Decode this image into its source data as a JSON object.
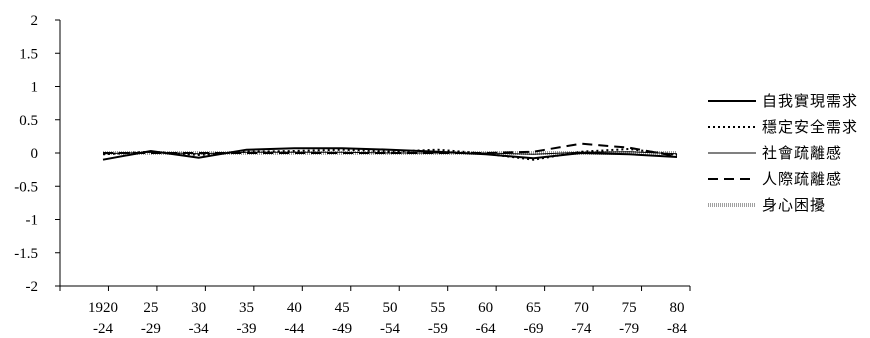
{
  "chart_data": {
    "type": "line",
    "title": "",
    "xlabel": "",
    "ylabel": "",
    "ylim": [
      -2,
      2
    ],
    "yticks": [
      "2",
      "1.5",
      "1",
      "0.5",
      "0",
      "-0.5",
      "-1",
      "-1.5",
      "-2"
    ],
    "x_tick_top": [
      "1920",
      "25",
      "30",
      "35",
      "40",
      "45",
      "50",
      "55",
      "60",
      "65",
      "70",
      "75",
      "80"
    ],
    "x_tick_bottom": [
      "-24",
      "-29",
      "-34",
      "-39",
      "-44",
      "-49",
      "-54",
      "-59",
      "-64",
      "-69",
      "-74",
      "-79",
      "-84"
    ],
    "grid": false,
    "legend_position": "right",
    "series": [
      {
        "name": "自我實現需求",
        "style": "solid-thick",
        "color": "#000000",
        "values": [
          -0.1,
          0.03,
          -0.07,
          0.05,
          0.07,
          0.07,
          0.05,
          0.02,
          -0.02,
          -0.08,
          0.0,
          -0.02,
          -0.06
        ]
      },
      {
        "name": "穩定安全需求",
        "style": "dotted",
        "color": "#000000",
        "values": [
          -0.02,
          0.02,
          -0.03,
          0.02,
          0.03,
          0.05,
          0.02,
          0.05,
          -0.01,
          -0.1,
          0.02,
          0.06,
          -0.03
        ]
      },
      {
        "name": "社會疏離感",
        "style": "solid-thin",
        "color": "#000000",
        "values": [
          -0.01,
          0.01,
          -0.01,
          0.01,
          0.01,
          0.01,
          0.0,
          0.0,
          0.0,
          -0.02,
          0.01,
          0.02,
          -0.01
        ]
      },
      {
        "name": "人際疏離感",
        "style": "dashed",
        "color": "#000000",
        "values": [
          0.0,
          0.0,
          0.0,
          0.0,
          0.0,
          0.0,
          0.0,
          0.0,
          0.0,
          0.02,
          0.14,
          0.08,
          -0.05
        ]
      },
      {
        "name": "身心困擾",
        "style": "hatched-gray",
        "color": "#888888",
        "values": [
          0.0,
          0.0,
          0.0,
          0.0,
          0.0,
          0.0,
          0.0,
          0.0,
          0.0,
          0.0,
          0.0,
          0.0,
          0.0
        ]
      }
    ]
  }
}
